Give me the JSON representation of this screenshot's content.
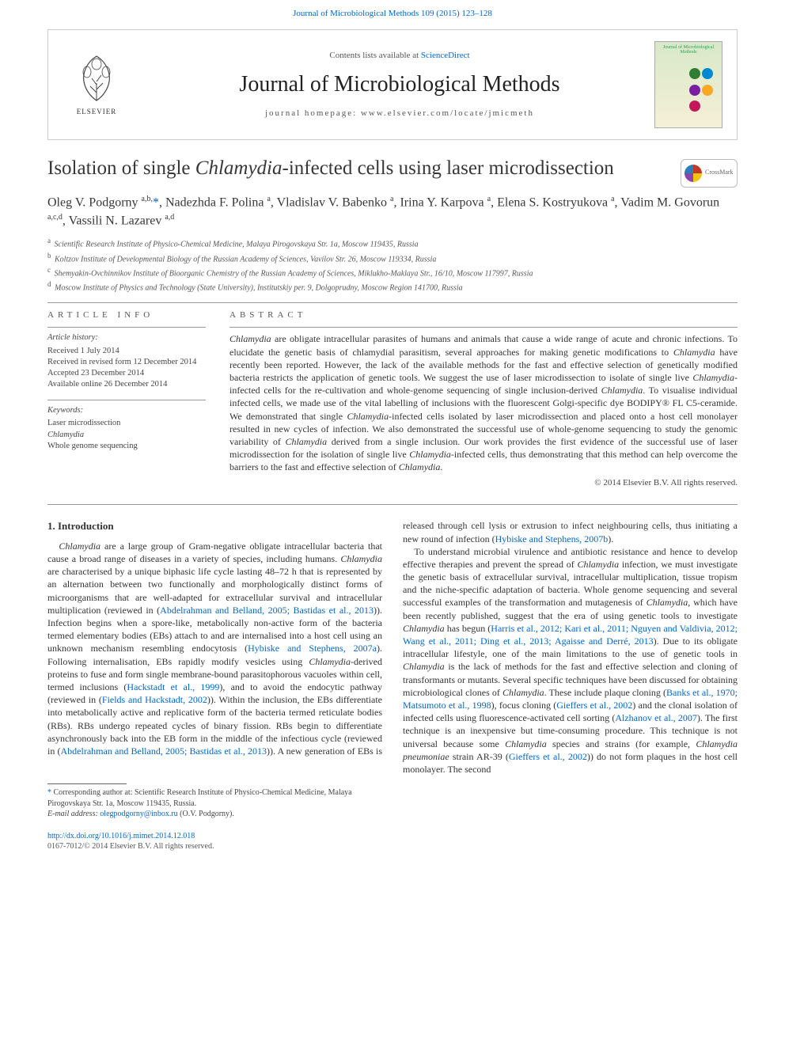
{
  "topLink": {
    "prefix": "",
    "linkText": "Journal of Microbiological Methods 109 (2015) 123–128"
  },
  "header": {
    "contentsPrefix": "Contents lists available at ",
    "contentsLink": "ScienceDirect",
    "journalName": "Journal of Microbiological Methods",
    "homepageLabel": "journal homepage: www.elsevier.com/locate/jmicmeth",
    "publisherName": "ELSEVIER",
    "coverTitle": "Journal of Microbiological Methods",
    "coverBlobColors": [
      "#2e7d32",
      "#0288d1",
      "#7b1fa2",
      "#f9a825",
      "#c2185b"
    ]
  },
  "article": {
    "titleParts": [
      "Isolation of single ",
      "Chlamydia",
      "-infected cells using laser microdissection"
    ],
    "crossmarkLabel": "CrossMark",
    "authorsHtml": "Oleg V. Podgorny <sup>a,b,</sup><span class='star'>*</span>, Nadezhda F. Polina <sup>a</sup>, Vladislav V. Babenko <sup>a</sup>, Irina Y. Karpova <sup>a</sup>, Elena S. Kostryukova <sup>a</sup>, Vadim M. Govorun <sup>a,c,d</sup>, Vassili N. Lazarev <sup>a,d</sup>",
    "affiliations": [
      {
        "sup": "a",
        "text": "Scientific Research Institute of Physico-Chemical Medicine, Malaya Pirogovskaya Str. 1a, Moscow 119435, Russia"
      },
      {
        "sup": "b",
        "text": "Koltzov Institute of Developmental Biology of the Russian Academy of Sciences, Vavilov Str. 26, Moscow 119334, Russia"
      },
      {
        "sup": "c",
        "text": "Shemyakin-Ovchinnikov Institute of Bioorganic Chemistry of the Russian Academy of Sciences, Miklukho-Maklaya Str., 16/10, Moscow 117997, Russia"
      },
      {
        "sup": "d",
        "text": "Moscow Institute of Physics and Technology (State University), Institutskiy per. 9, Dolgoprudny, Moscow Region 141700, Russia"
      }
    ]
  },
  "info": {
    "heading": "ARTICLE INFO",
    "historyLabel": "Article history:",
    "history": [
      "Received 1 July 2014",
      "Received in revised form 12 December 2014",
      "Accepted 23 December 2014",
      "Available online 26 December 2014"
    ],
    "keywordsLabel": "Keywords:",
    "keywords": [
      "Laser microdissection",
      "Chlamydia",
      "Whole genome sequencing"
    ]
  },
  "abstract": {
    "heading": "ABSTRACT",
    "textHtml": "<em>Chlamydia</em> are obligate intracellular parasites of humans and animals that cause a wide range of acute and chronic infections. To elucidate the genetic basis of chlamydial parasitism, several approaches for making genetic modifications to <em>Chlamydia</em> have recently been reported. However, the lack of the available methods for the fast and effective selection of genetically modified bacteria restricts the application of genetic tools. We suggest the use of laser microdissection to isolate of single live <em>Chlamydia</em>-infected cells for the re-cultivation and whole-genome sequencing of single inclusion-derived <em>Chlamydia</em>. To visualise individual infected cells, we made use of the vital labelling of inclusions with the fluorescent Golgi-specific dye BODIPY® FL C5-ceramide. We demonstrated that single <em>Chlamydia</em>-infected cells isolated by laser microdissection and placed onto a host cell monolayer resulted in new cycles of infection. We also demonstrated the successful use of whole-genome sequencing to study the genomic variability of <em>Chlamydia</em> derived from a single inclusion. Our work provides the first evidence of the successful use of laser microdissection for the isolation of single live <em>Chlamydia</em>-infected cells, thus demonstrating that this method can help overcome the barriers to the fast and effective selection of <em>Chlamydia</em>.",
    "copyright": "© 2014 Elsevier B.V. All rights reserved."
  },
  "sections": {
    "introHeading": "1. Introduction",
    "para1Html": "<em>Chlamydia</em> are a large group of Gram-negative obligate intracellular bacteria that cause a broad range of diseases in a variety of species, including humans. <em>Chlamydia</em> are characterised by a unique biphasic life cycle lasting 48–72 h that is represented by an alternation between two functionally and morphologically distinct forms of microorganisms that are well-adapted for extracellular survival and intracellular multiplication (reviewed in (<a href='#'>Abdelrahman and Belland, 2005; Bastidas et al., 2013</a>)). Infection begins when a spore-like, metabolically non-active form of the bacteria termed elementary bodies (EBs) attach to and are internalised into a host cell using an unknown mechanism resembling endocytosis (<a href='#'>Hybiske and Stephens, 2007a</a>). Following internalisation, EBs rapidly modify vesicles using <em>Chlamydia</em>-derived proteins to fuse and form single membrane-bound parasitophorous vacuoles within cell, termed inclusions (<a href='#'>Hackstadt et al., 1999</a>), and to avoid the endocytic pathway (reviewed in (<a href='#'>Fields and Hackstadt, 2002</a>)). Within the inclusion, the EBs differentiate into metabolically active and replicative form of the bacteria termed reticulate bodies (RBs). RBs undergo repeated cycles of binary fission. RBs begin to differentiate asynchronously back into the EB form in the middle of the infectious cycle (reviewed in (<a href='#'>Abdelrahman and Belland, 2005; Bastidas et al., 2013</a>)). A new generation of EBs is released through cell lysis or extrusion to infect neighbouring cells, thus initiating a new round of infection (<a href='#'>Hybiske and Stephens, 2007b</a>).",
    "para2Html": "To understand microbial virulence and antibiotic resistance and hence to develop effective therapies and prevent the spread of <em>Chlamydia</em> infection, we must investigate the genetic basis of extracellular survival, intracellular multiplication, tissue tropism and the niche-specific adaptation of bacteria. Whole genome sequencing and several successful examples of the transformation and mutagenesis of <em>Chlamydia</em>, which have been recently published, suggest that the era of using genetic tools to investigate <em>Chlamydia</em> has begun (<a href='#'>Harris et al., 2012; Kari et al., 2011; Nguyen and Valdivia, 2012; Wang et al., 2011; Ding et al., 2013; Agaisse and Derré, 2013</a>). Due to its obligate intracellular lifestyle, one of the main limitations to the use of genetic tools in <em>Chlamydia</em> is the lack of methods for the fast and effective selection and cloning of transformants or mutants. Several specific techniques have been discussed for obtaining microbiological clones of <em>Chlamydia</em>. These include plaque cloning (<a href='#'>Banks et al., 1970; Matsumoto et al., 1998</a>), focus cloning (<a href='#'>Gieffers et al., 2002</a>) and the clonal isolation of infected cells using fluorescence-activated cell sorting (<a href='#'>Alzhanov et al., 2007</a>). The first technique is an inexpensive but time-consuming procedure. This technique is not universal because some <em>Chlamydia</em> species and strains (for example, <em>Chlamydia pneumoniae</em> strain AR-39 (<a href='#'>Gieffers et al., 2002</a>)) do not form plaques in the host cell monolayer. The second"
  },
  "footnotes": {
    "corresponding": "Corresponding author at: Scientific Research Institute of Physico-Chemical Medicine, Malaya Pirogovskaya Str. 1a, Moscow 119435, Russia.",
    "emailLabel": "E-mail address:",
    "email": "olegpodgorny@inbox.ru",
    "emailSuffix": "(O.V. Podgorny)."
  },
  "footer": {
    "doi": "http://dx.doi.org/10.1016/j.mimet.2014.12.018",
    "rights": "0167-7012/© 2014 Elsevier B.V. All rights reserved."
  },
  "colors": {
    "link": "#0066cc",
    "text": "#333333",
    "border": "#cccccc",
    "muted": "#555555"
  },
  "typography": {
    "bodyFont": "Georgia, Times New Roman, serif",
    "bodySizePx": 13,
    "journalNameSizePx": 28,
    "articleTitleSizePx": 25,
    "authorsSizePx": 16,
    "abstractSizePx": 12,
    "affiliationSizePx": 10
  },
  "layout": {
    "pageWidthPx": 992,
    "pageHeightPx": 1323,
    "sideMarginPx": 60,
    "bodyColumns": 2,
    "columnGapPx": 26
  }
}
